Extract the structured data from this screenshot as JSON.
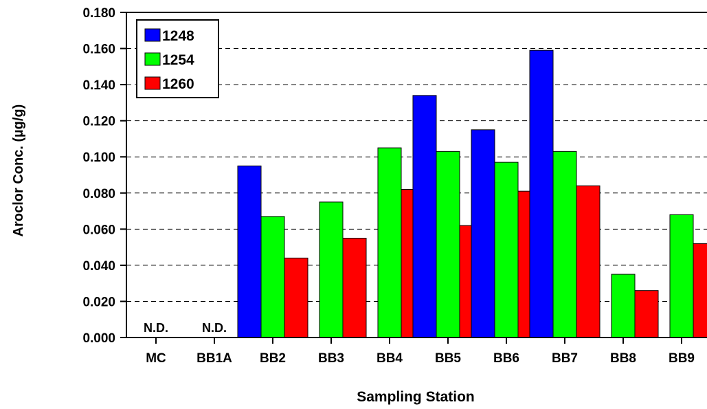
{
  "chart_data": {
    "type": "bar",
    "xlabel": "Sampling Station",
    "ylabel": "Aroclor Conc. (µg/g)",
    "ylim": [
      0,
      0.18
    ],
    "yticks": [
      "0.000",
      "0.020",
      "0.040",
      "0.060",
      "0.080",
      "0.100",
      "0.120",
      "0.140",
      "0.160",
      "0.180"
    ],
    "grid": "horizontal dashed",
    "legend_position": "top-left",
    "categories": [
      "MC",
      "BB1A",
      "BB2",
      "BB3",
      "BB4",
      "BB5",
      "BB6",
      "BB7",
      "BB8",
      "BB9"
    ],
    "series": [
      {
        "name": "1248",
        "color": "#0000ff",
        "values": [
          0,
          0,
          0.095,
          0,
          0,
          0.134,
          0.115,
          0.159,
          0,
          0
        ]
      },
      {
        "name": "1254",
        "color": "#00ff00",
        "values": [
          0,
          0,
          0.067,
          0.075,
          0.105,
          0.103,
          0.097,
          0.103,
          0.035,
          0.068
        ]
      },
      {
        "name": "1260",
        "color": "#ff0000",
        "values": [
          0,
          0,
          0.044,
          0.055,
          0.082,
          0.062,
          0.081,
          0.084,
          0.026,
          0.052
        ]
      }
    ],
    "annotations": [
      {
        "category": "MC",
        "text": "N.D."
      },
      {
        "category": "BB1A",
        "text": "N.D."
      }
    ]
  }
}
